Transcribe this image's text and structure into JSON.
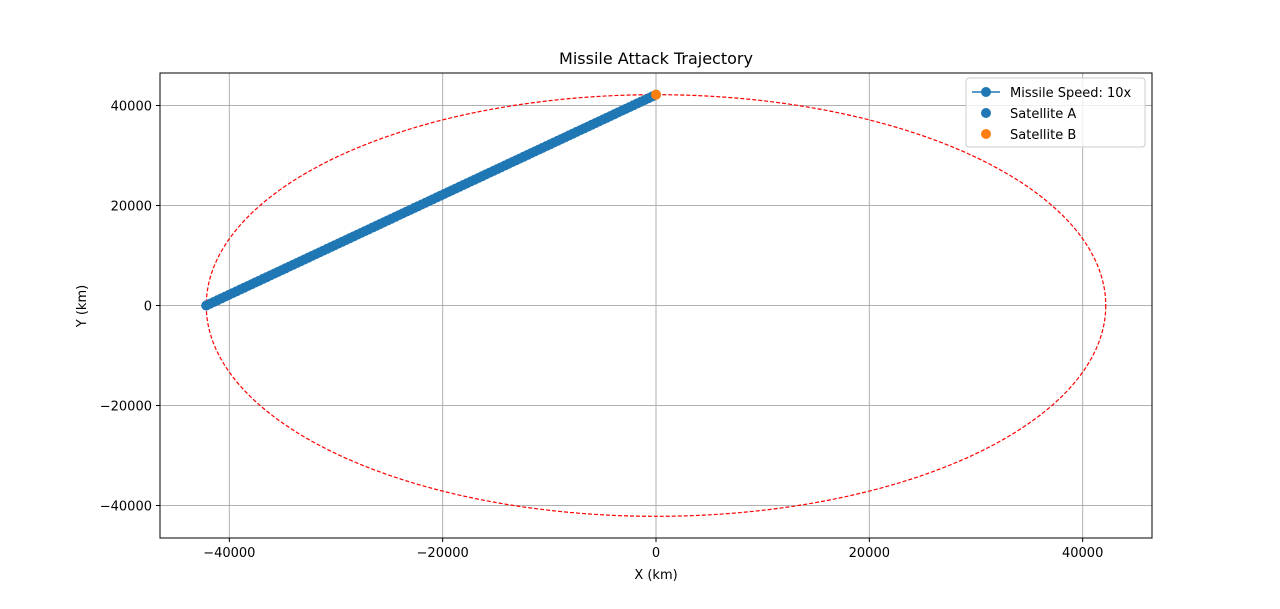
{
  "chart_data": {
    "type": "line",
    "title": "Missile Attack Trajectory",
    "xlabel": "X (km)",
    "ylabel": "Y (km)",
    "xlim": [
      -46500,
      46500
    ],
    "ylim": [
      -46500,
      46500
    ],
    "xticks": [
      -40000,
      -20000,
      0,
      20000,
      40000
    ],
    "xtick_labels": [
      "−40000",
      "−20000",
      "0",
      "20000",
      "40000"
    ],
    "yticks": [
      -40000,
      -20000,
      0,
      20000,
      40000
    ],
    "ytick_labels": [
      "−40000",
      "−20000",
      "0",
      "20000",
      "40000"
    ],
    "grid": true,
    "legend_position": "top-right",
    "orbit": {
      "center": [
        0,
        0
      ],
      "radius": 42164,
      "color": "#ff0000",
      "style": "dashed"
    },
    "series": [
      {
        "name": "Missile Speed: 10x",
        "kind": "line-marker",
        "color": "#1f77b4",
        "x": [
          -42164,
          0
        ],
        "y": [
          0,
          42164
        ],
        "n_points": 120
      },
      {
        "name": "Satellite A",
        "kind": "scatter",
        "color": "#1f77b4",
        "x": [
          -42164
        ],
        "y": [
          0
        ]
      },
      {
        "name": "Satellite B",
        "kind": "scatter",
        "color": "#ff7f0e",
        "x": [
          0
        ],
        "y": [
          42164
        ]
      }
    ]
  }
}
